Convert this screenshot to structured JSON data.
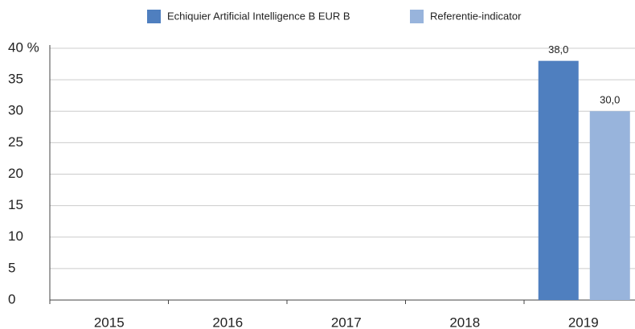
{
  "chart_data": {
    "type": "bar",
    "categories": [
      "2015",
      "2016",
      "2017",
      "2018",
      "2019"
    ],
    "series": [
      {
        "name": "Echiquier Artificial Intelligence B EUR B",
        "color": "#4f7fbf",
        "values": [
          null,
          null,
          null,
          null,
          38
        ],
        "value_labels": [
          null,
          null,
          null,
          null,
          "38,0"
        ]
      },
      {
        "name": "Referentie-indicator",
        "color": "#98b4dc",
        "values": [
          null,
          null,
          null,
          null,
          30
        ],
        "value_labels": [
          null,
          null,
          null,
          null,
          "30,0"
        ]
      }
    ],
    "ylim": [
      0,
      40
    ],
    "yticks": [
      0,
      5,
      10,
      15,
      20,
      25,
      30,
      35,
      {
        "value": 40,
        "label": "40 %"
      }
    ],
    "grid": true,
    "legend": "top"
  }
}
